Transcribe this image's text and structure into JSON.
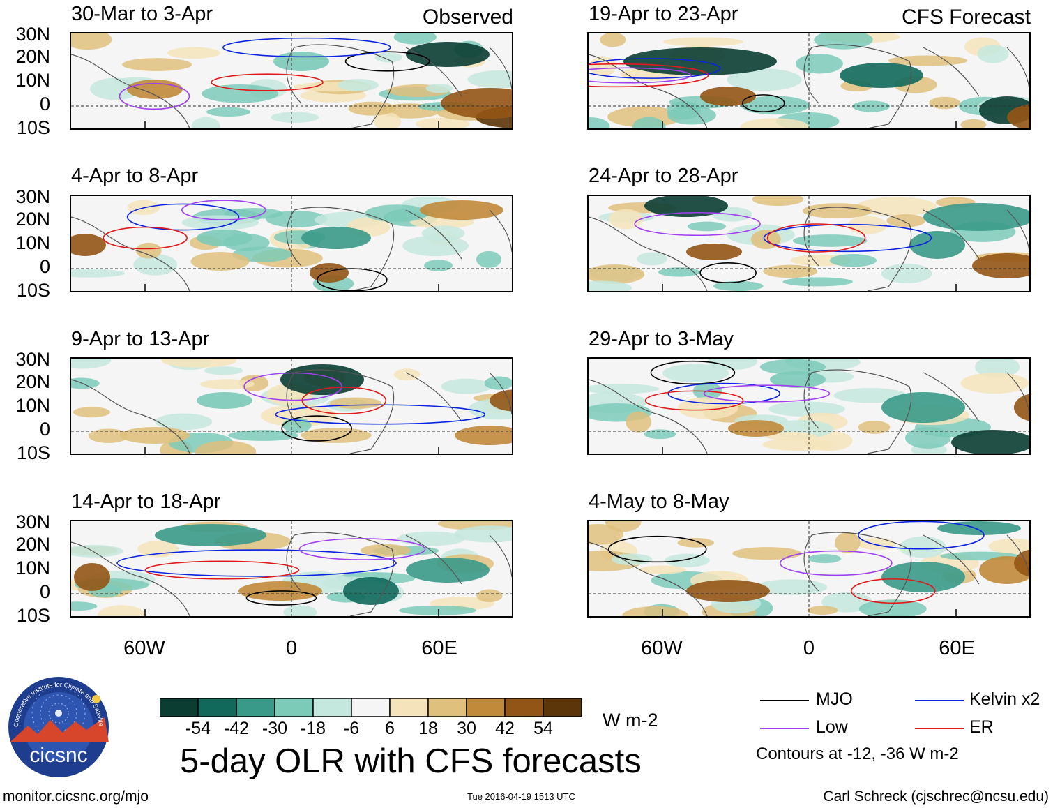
{
  "header": {
    "observed_label": "Observed",
    "forecast_label": "CFS Forecast"
  },
  "lat_labels": [
    "30N",
    "20N",
    "10N",
    "0",
    "10S"
  ],
  "lon_labels": [
    "60W",
    "0",
    "60E"
  ],
  "panels": [
    {
      "title": "30-Mar to 3-Apr",
      "kind": "observed"
    },
    {
      "title": "4-Apr to 8-Apr",
      "kind": "observed"
    },
    {
      "title": "9-Apr to 13-Apr",
      "kind": "observed"
    },
    {
      "title": "14-Apr to 18-Apr",
      "kind": "observed"
    },
    {
      "title": "19-Apr to 23-Apr",
      "kind": "forecast"
    },
    {
      "title": "24-Apr to 28-Apr",
      "kind": "forecast"
    },
    {
      "title": "29-Apr to 3-May",
      "kind": "forecast"
    },
    {
      "title": "4-May to 8-May",
      "kind": "forecast"
    }
  ],
  "colorbar": {
    "labels": [
      "-54",
      "-42",
      "-30",
      "-18",
      "-6",
      "6",
      "18",
      "30",
      "42",
      "54"
    ],
    "colors": [
      "#0b3d33",
      "#11695c",
      "#3a9a8a",
      "#7ccab8",
      "#c4e8de",
      "#f5f5f5",
      "#f5e4bb",
      "#dfc07d",
      "#c18a3b",
      "#935516",
      "#5c3508"
    ],
    "units": "W m-2"
  },
  "legend": {
    "items": [
      {
        "label": "MJO",
        "color": "#000000"
      },
      {
        "label": "Kelvin x2",
        "color": "#0a24e0"
      },
      {
        "label": "Low",
        "color": "#a040f0"
      },
      {
        "label": "ER",
        "color": "#e01a1a"
      }
    ],
    "note": "Contours at -12, -36 W m-2"
  },
  "main_title": "5-day OLR with CFS forecasts",
  "logo": {
    "text": "cicsnc",
    "ring_text": "Cooperative Institute for Climate and Satellites"
  },
  "footer": {
    "url": "monitor.cicsnc.org/mjo",
    "timestamp": "Tue 2016-04-19 1513 UTC",
    "author": "Carl Schreck (cjschrec@ncsu.edu)"
  }
}
